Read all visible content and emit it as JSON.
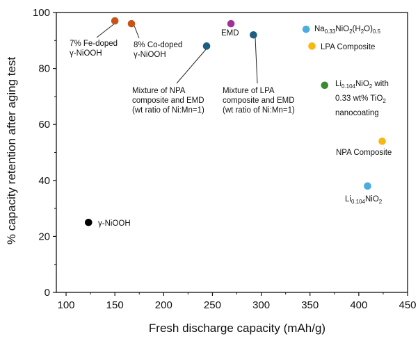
{
  "chart_data": {
    "type": "scatter",
    "title": "",
    "xlabel": "Fresh discharge capacity (mAh/g)",
    "ylabel": "% capacity retention after aging test",
    "xlim": [
      90,
      450
    ],
    "ylim": [
      0,
      100
    ],
    "x_ticks": [
      100,
      150,
      200,
      250,
      300,
      350,
      400,
      450
    ],
    "y_ticks": [
      0,
      20,
      40,
      60,
      80,
      100
    ],
    "grid": false,
    "legend": "none",
    "points": [
      {
        "label_lines": [
          [
            {
              "t": "7% Fe-doped"
            }
          ],
          [
            {
              "t": "γ-NiOOH"
            }
          ]
        ],
        "x": 150,
        "y": 97,
        "color": "#c65418"
      },
      {
        "label_lines": [
          [
            {
              "t": "8% Co-doped"
            }
          ],
          [
            {
              "t": "γ-NiOOH"
            }
          ]
        ],
        "x": 167,
        "y": 96,
        "color": "#c65418"
      },
      {
        "label_lines": [
          [
            {
              "t": "EMD"
            }
          ]
        ],
        "x": 269,
        "y": 96,
        "color": "#a0319a"
      },
      {
        "label_lines": [
          [
            {
              "t": "Mixture of NPA"
            }
          ],
          [
            {
              "t": "composite and EMD"
            }
          ],
          [
            {
              "t": "(wt ratio of Ni:Mn=1)"
            }
          ]
        ],
        "x": 244,
        "y": 88,
        "color": "#1c5f80"
      },
      {
        "label_lines": [
          [
            {
              "t": "Mixture of LPA"
            }
          ],
          [
            {
              "t": "composite and EMD"
            }
          ],
          [
            {
              "t": "(wt ratio of Ni:Mn=1)"
            }
          ]
        ],
        "x": 292,
        "y": 92,
        "color": "#1c5f80"
      },
      {
        "label_lines": [
          [
            {
              "t": "Na"
            },
            {
              "t": "0.33",
              "sub": true
            },
            {
              "t": "NiO"
            },
            {
              "t": "2",
              "sub": true
            },
            {
              "t": "(H"
            },
            {
              "t": "2",
              "sub": true
            },
            {
              "t": "O)"
            },
            {
              "t": "0.5",
              "sub": true
            }
          ]
        ],
        "x": 346,
        "y": 94,
        "color": "#4dacdf"
      },
      {
        "label_lines": [
          [
            {
              "t": "LPA Composite"
            }
          ]
        ],
        "x": 352,
        "y": 88,
        "color": "#f7b813"
      },
      {
        "label_lines": [
          [
            {
              "t": "Li"
            },
            {
              "t": "0.104",
              "sub": true
            },
            {
              "t": "NiO"
            },
            {
              "t": "2",
              "sub": true
            },
            {
              "t": " with"
            }
          ],
          [
            {
              "t": "0.33 wt% TiO"
            },
            {
              "t": "2",
              "sub": true
            }
          ],
          [
            {
              "t": "nanocoating"
            }
          ]
        ],
        "x": 365,
        "y": 74,
        "color": "#3c8a2e"
      },
      {
        "label_lines": [
          [
            {
              "t": "NPA Composite"
            }
          ]
        ],
        "x": 424,
        "y": 54,
        "color": "#f7b813"
      },
      {
        "label_lines": [
          [
            {
              "t": "Li"
            },
            {
              "t": "0.104",
              "sub": true
            },
            {
              "t": "NiO"
            },
            {
              "t": "2",
              "sub": true
            }
          ]
        ],
        "x": 409,
        "y": 38,
        "color": "#4dacdf"
      },
      {
        "label_lines": [
          [
            {
              "t": "γ-NiOOH"
            }
          ]
        ],
        "x": 123,
        "y": 25,
        "color": "#000000"
      }
    ]
  }
}
